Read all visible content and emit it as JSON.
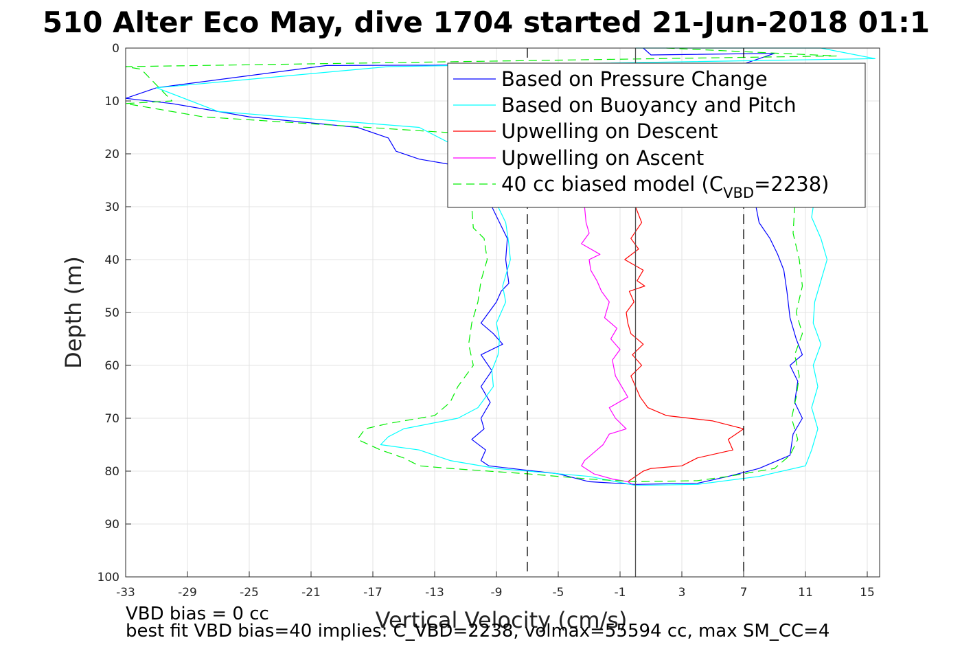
{
  "chart_data": {
    "type": "line",
    "title": "510 Alter Eco May, dive 1704 started 21-Jun-2018 01:1",
    "xlabel": "Vertical Velocity (cm/s)",
    "ylabel": "Depth (m)",
    "xlim": [
      -33,
      15.8
    ],
    "ylim": [
      0,
      100
    ],
    "y_reversed": true,
    "grid": true,
    "xticks": [
      -33,
      -29,
      -25,
      -21,
      -17,
      -13,
      -9,
      -5,
      -1,
      3,
      7,
      11,
      15
    ],
    "yticks": [
      0,
      10,
      20,
      30,
      40,
      50,
      60,
      70,
      80,
      90,
      100
    ],
    "xtick_labels": [
      "-33",
      "-29",
      "-25",
      "-21",
      "-17",
      "-13",
      "-9",
      "-5",
      "-1",
      "3",
      "7",
      "11",
      "15"
    ],
    "ytick_labels": [
      "0",
      "10",
      "20",
      "30",
      "40",
      "50",
      "60",
      "70",
      "80",
      "90",
      "100"
    ],
    "reference_lines": [
      {
        "x": -7,
        "style": "dashed",
        "color": "#000000"
      },
      {
        "x": 7,
        "style": "dashed",
        "color": "#000000"
      },
      {
        "x": 0,
        "style": "solid",
        "color": "#555555"
      }
    ],
    "series": [
      {
        "name": "Based on Pressure Change",
        "color": "#0000ff",
        "dash": "",
        "points": [
          [
            0.5,
            0
          ],
          [
            1,
            1.3
          ],
          [
            9,
            1
          ],
          [
            7,
            3
          ],
          [
            -20,
            3.3
          ],
          [
            -31,
            7.5
          ],
          [
            -33,
            9.5
          ],
          [
            -30,
            10.5
          ],
          [
            -25,
            13
          ],
          [
            -18,
            15
          ],
          [
            -16,
            17
          ],
          [
            -15.5,
            19.5
          ],
          [
            -14,
            21
          ],
          [
            -12,
            22
          ],
          [
            -9,
            23.5
          ],
          [
            -9.3,
            30
          ],
          [
            -8.8,
            33
          ],
          [
            -8.3,
            36
          ],
          [
            -8.4,
            40
          ],
          [
            -8.2,
            44.5
          ],
          [
            -8.7,
            46
          ],
          [
            -9,
            48
          ],
          [
            -10,
            52
          ],
          [
            -9.2,
            54
          ],
          [
            -8.6,
            56
          ],
          [
            -10,
            58
          ],
          [
            -9.3,
            61
          ],
          [
            -10,
            64
          ],
          [
            -9.4,
            67
          ],
          [
            -10,
            70
          ],
          [
            -9.8,
            72
          ],
          [
            -10.6,
            74
          ],
          [
            -9.7,
            76
          ],
          [
            -10,
            78
          ],
          [
            -9.5,
            79
          ],
          [
            -5,
            80.5
          ],
          [
            -3,
            82
          ],
          [
            0,
            82.5
          ],
          [
            4,
            82.3
          ],
          [
            6,
            81
          ],
          [
            8,
            79.5
          ],
          [
            10,
            77
          ],
          [
            10.2,
            73
          ],
          [
            10.8,
            70
          ],
          [
            10.3,
            67
          ],
          [
            10.5,
            63
          ],
          [
            10,
            60
          ],
          [
            10.8,
            58
          ],
          [
            10.4,
            55
          ],
          [
            10,
            51
          ],
          [
            9.8,
            46
          ],
          [
            9.6,
            42
          ],
          [
            9.2,
            39
          ],
          [
            8.7,
            36
          ],
          [
            8,
            33
          ],
          [
            7.8,
            30
          ]
        ]
      },
      {
        "name": "Based on Buoyancy and Pitch",
        "color": "#00ffff",
        "dash": "",
        "points": [
          [
            0,
            0
          ],
          [
            12,
            0
          ],
          [
            15.5,
            2
          ],
          [
            -16,
            3.5
          ],
          [
            -31,
            7.5
          ],
          [
            -27,
            12
          ],
          [
            -14,
            15
          ],
          [
            -12,
            18
          ],
          [
            -9,
            22
          ],
          [
            -8.9,
            30
          ],
          [
            -8.4,
            33
          ],
          [
            -8.2,
            37
          ],
          [
            -8.1,
            40
          ],
          [
            -8.6,
            45
          ],
          [
            -8.4,
            48
          ],
          [
            -9,
            52
          ],
          [
            -8.8,
            55
          ],
          [
            -8.9,
            58
          ],
          [
            -9.3,
            61
          ],
          [
            -9.2,
            64
          ],
          [
            -10.2,
            68
          ],
          [
            -11.5,
            70
          ],
          [
            -15,
            72
          ],
          [
            -16,
            73.5
          ],
          [
            -16.5,
            75
          ],
          [
            -14,
            76
          ],
          [
            -12,
            78
          ],
          [
            -9,
            79.5
          ],
          [
            -3,
            81
          ],
          [
            0,
            82.7
          ],
          [
            4,
            82.5
          ],
          [
            8,
            81
          ],
          [
            11,
            79
          ],
          [
            11.4,
            76
          ],
          [
            11.8,
            72
          ],
          [
            11.4,
            68
          ],
          [
            11.8,
            64
          ],
          [
            11.5,
            60
          ],
          [
            12,
            56
          ],
          [
            11.5,
            52
          ],
          [
            11.6,
            48
          ],
          [
            12,
            44
          ],
          [
            12.4,
            40
          ],
          [
            12,
            36
          ],
          [
            11.4,
            32
          ],
          [
            11.5,
            30
          ]
        ]
      },
      {
        "name": "Upwelling on Descent",
        "color": "#ff0000",
        "dash": "",
        "points": [
          [
            0,
            30
          ],
          [
            0.4,
            33
          ],
          [
            -0.3,
            36
          ],
          [
            0.2,
            38
          ],
          [
            -0.7,
            40
          ],
          [
            0.5,
            42
          ],
          [
            0.1,
            44
          ],
          [
            0.6,
            45
          ],
          [
            -0.4,
            46
          ],
          [
            -0.1,
            48
          ],
          [
            -0.6,
            50
          ],
          [
            -0.5,
            52
          ],
          [
            -0.3,
            54
          ],
          [
            0.5,
            56
          ],
          [
            -0.2,
            58
          ],
          [
            0.4,
            60
          ],
          [
            -0.3,
            62
          ],
          [
            0,
            64
          ],
          [
            0.3,
            66
          ],
          [
            0.8,
            68
          ],
          [
            2,
            69.5
          ],
          [
            5,
            70.5
          ],
          [
            7,
            72
          ],
          [
            6.5,
            73
          ],
          [
            6,
            74
          ],
          [
            6.3,
            76
          ],
          [
            4,
            77.5
          ],
          [
            3,
            79
          ],
          [
            1,
            79.5
          ],
          [
            0.5,
            80
          ],
          [
            0,
            81
          ],
          [
            -0.5,
            82
          ]
        ]
      },
      {
        "name": "Upwelling on Ascent",
        "color": "#ff00ff",
        "dash": "",
        "points": [
          [
            -3.3,
            30
          ],
          [
            -3.2,
            33
          ],
          [
            -3,
            35
          ],
          [
            -3.5,
            37
          ],
          [
            -2.3,
            39
          ],
          [
            -3,
            40
          ],
          [
            -2.9,
            42
          ],
          [
            -2.5,
            44
          ],
          [
            -2.2,
            46
          ],
          [
            -1.7,
            48
          ],
          [
            -2,
            51
          ],
          [
            -1.2,
            53
          ],
          [
            -1.6,
            55
          ],
          [
            -1,
            57
          ],
          [
            -1.5,
            59
          ],
          [
            -1.3,
            62
          ],
          [
            -0.9,
            64
          ],
          [
            -0.5,
            66
          ],
          [
            -1.7,
            68
          ],
          [
            -1.3,
            70
          ],
          [
            -0.6,
            72
          ],
          [
            -1.7,
            73
          ],
          [
            -2.1,
            75
          ],
          [
            -2.5,
            76
          ],
          [
            -3.3,
            78
          ],
          [
            -3.5,
            79
          ],
          [
            -2.7,
            80.5
          ],
          [
            -1.5,
            81.5
          ],
          [
            -0.5,
            82
          ],
          [
            -0.2,
            82.5
          ]
        ]
      },
      {
        "name": "40 cc biased model (C_VBD=2238)",
        "color": "#00ee00",
        "dash": "12 7",
        "points": [
          [
            2,
            0
          ],
          [
            13,
            1.5
          ],
          [
            -33,
            3.5
          ],
          [
            -32,
            4
          ],
          [
            -30,
            10
          ],
          [
            -33,
            10.5
          ],
          [
            -28,
            13
          ],
          [
            -12,
            16
          ],
          [
            -10,
            20
          ],
          [
            -10.5,
            25
          ],
          [
            -10.6,
            30
          ],
          [
            -10.5,
            34
          ],
          [
            -9.8,
            36
          ],
          [
            -9.6,
            40
          ],
          [
            -10,
            44
          ],
          [
            -10.2,
            48
          ],
          [
            -10.6,
            52
          ],
          [
            -10.8,
            56
          ],
          [
            -10.5,
            60
          ],
          [
            -11.5,
            64
          ],
          [
            -12,
            67
          ],
          [
            -13,
            69.5
          ],
          [
            -16,
            71
          ],
          [
            -17.5,
            72
          ],
          [
            -18,
            74
          ],
          [
            -16.5,
            76
          ],
          [
            -15,
            77.5
          ],
          [
            -14,
            79
          ],
          [
            -12,
            79.5
          ],
          [
            -7,
            80.5
          ],
          [
            -3,
            81.5
          ],
          [
            0,
            82
          ],
          [
            4,
            81.8
          ],
          [
            6,
            81
          ],
          [
            9,
            79.5
          ],
          [
            10,
            77
          ],
          [
            10.5,
            74
          ],
          [
            10.1,
            70
          ],
          [
            10.4,
            66
          ],
          [
            10.6,
            62
          ],
          [
            10.3,
            58
          ],
          [
            10.8,
            54
          ],
          [
            10.4,
            50
          ],
          [
            10.8,
            45
          ],
          [
            10.6,
            40
          ],
          [
            10.2,
            35
          ],
          [
            10.3,
            30
          ]
        ]
      }
    ],
    "legend": {
      "position": "top-right",
      "entries": [
        "Based on Pressure Change",
        "Based on Buoyancy and Pitch",
        "Upwelling on Descent",
        "Upwelling on Ascent"
      ],
      "model_label_prefix": "40 cc biased model (C",
      "model_label_subscript": "VBD",
      "model_label_suffix": "=2238)"
    },
    "annotations": [
      "VBD bias = 0 cc",
      "best fit VBD bias=40 implies: C_VBD=2238, volmax=55594 cc, max SM_CC=4"
    ]
  }
}
